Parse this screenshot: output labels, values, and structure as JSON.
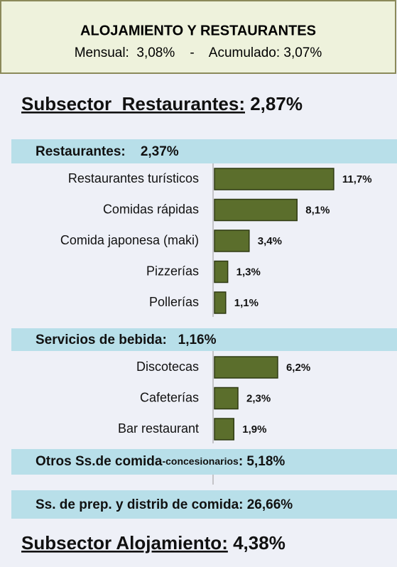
{
  "header": {
    "title": "ALOJAMIENTO Y RESTAURANTES",
    "subtitle": "Mensual:  3,08%    -    Acumulado: 3,07%"
  },
  "subsector_restaurantes": {
    "label": "Subsector  Restaurantes:",
    "value": "2,87%"
  },
  "chart_data": {
    "type": "bar",
    "orientation": "horizontal",
    "color": "#5b6e2c",
    "groups": [
      {
        "title": "Restaurantes:    2,37%",
        "categories": [
          "Restaurantes turísticos",
          "Comidas rápidas",
          "Comida japonesa (maki)",
          "Pizzerías",
          "Pollerías"
        ],
        "values": [
          11.7,
          8.1,
          3.4,
          1.3,
          1.1
        ],
        "value_labels": [
          "11,7%",
          "8,1%",
          "3,4%",
          "1,3%",
          "1,1%"
        ]
      },
      {
        "title": "Servicios de bebida:   1,16%",
        "categories": [
          "Discotecas",
          "Cafeterías",
          "Bar restaurant"
        ],
        "values": [
          6.2,
          2.3,
          1.9
        ],
        "value_labels": [
          "6,2%",
          "2,3%",
          "1,9%"
        ]
      }
    ]
  },
  "otros": {
    "main": "Otros Ss.de comida",
    "small": "-concesionarios",
    "value": ": 5,18%"
  },
  "prep": "Ss. de prep. y distrib de comida: 26,66%",
  "subsector_alojamiento": {
    "label": "Subsector Alojamiento:",
    "value": "4,38%"
  }
}
